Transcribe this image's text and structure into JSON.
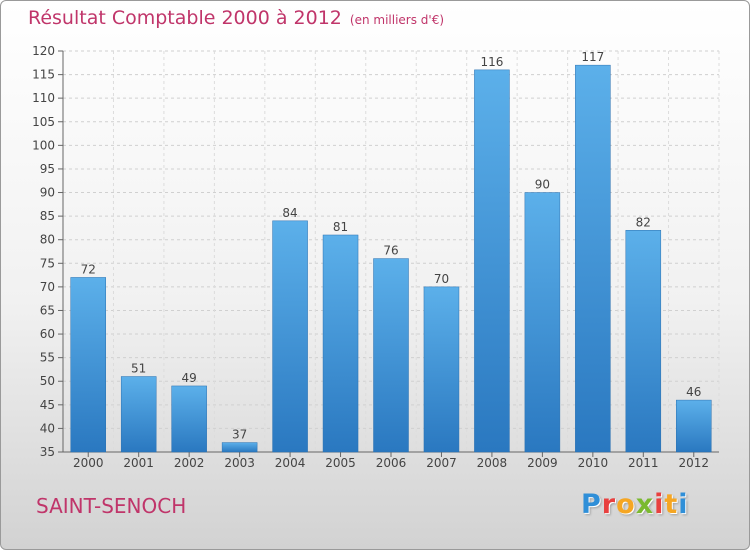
{
  "header": {
    "title": "Résultat Comptable 2000 à 2012",
    "unit": "(en milliers d'€)"
  },
  "footer": {
    "city": "SAINT-SENOCH",
    "logo": [
      "P",
      "r",
      "o",
      "x",
      "i",
      "t",
      "i"
    ],
    "logo_colors": [
      "#2f8fd8",
      "#e8403f",
      "#f5a623",
      "#7ab92f",
      "#e8403f",
      "#f5a623",
      "#2f8fd8"
    ]
  },
  "chart_data": {
    "type": "bar",
    "categories": [
      "2000",
      "2001",
      "2002",
      "2003",
      "2004",
      "2005",
      "2006",
      "2007",
      "2008",
      "2009",
      "2010",
      "2011",
      "2012"
    ],
    "values": [
      72,
      51,
      49,
      37,
      84,
      81,
      76,
      70,
      116,
      90,
      117,
      82,
      46
    ],
    "ylim": [
      35,
      120
    ],
    "yticks": [
      35,
      40,
      45,
      50,
      55,
      60,
      65,
      70,
      75,
      80,
      85,
      90,
      95,
      100,
      105,
      110,
      115,
      120
    ],
    "grid": true,
    "bar_color": "#3a8fd6",
    "title_color": "#c0356a"
  }
}
